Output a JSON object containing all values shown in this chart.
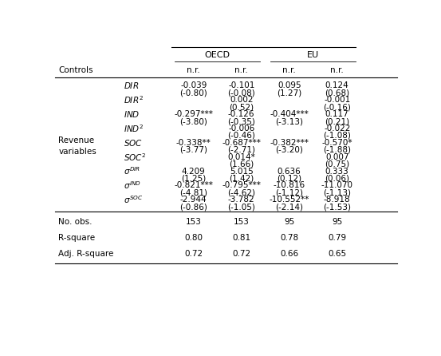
{
  "title_left": "OECD",
  "title_right": "EU",
  "controls_label": "Controls",
  "col_headers": [
    "n.r.",
    "n.r.",
    "n.r.",
    "n.r."
  ],
  "revenue_label": "Revenue\nvariables",
  "rows": [
    {
      "var": "DIR",
      "sup": "",
      "vals": [
        "-0.039",
        "-0.101",
        "0.095",
        "0.124"
      ],
      "tvals": [
        "(-0.80)",
        "(-0.08)",
        "(1.27)",
        "(0.68)"
      ]
    },
    {
      "var": "DIR",
      "sup": "2",
      "vals": [
        "",
        "0.002",
        "",
        "-0.001"
      ],
      "tvals": [
        "",
        "(0.52)",
        "",
        "(-0.16)"
      ]
    },
    {
      "var": "IND",
      "sup": "",
      "vals": [
        "-0.297***",
        "-0.126",
        "-0.404***",
        "0.117"
      ],
      "tvals": [
        "(-3.80)",
        "(-0.35)",
        "(-3.13)",
        "(0.21)"
      ]
    },
    {
      "var": "IND",
      "sup": "2",
      "vals": [
        "",
        "-0.006",
        "",
        "-0.022"
      ],
      "tvals": [
        "",
        "(-0.46)",
        "",
        "(-1.08)"
      ]
    },
    {
      "var": "SOC",
      "sup": "",
      "vals": [
        "-0.338**",
        "-0.687***",
        "-0.382***",
        "-0.570*"
      ],
      "tvals": [
        "(-3.77)",
        "(-2.71)",
        "(-3.20)",
        "(-1.88)"
      ]
    },
    {
      "var": "SOC",
      "sup": "2",
      "vals": [
        "",
        "0.014*",
        "",
        "0.007"
      ],
      "tvals": [
        "",
        "(1.66)",
        "",
        "(0.75)"
      ]
    },
    {
      "var": "sigma_DIR",
      "sup": "DIR",
      "vals": [
        "4.209",
        "5.015",
        "0.636",
        "0.333"
      ],
      "tvals": [
        "(1.25)",
        "(1.42)",
        "(0.12)",
        "(0.06)"
      ]
    },
    {
      "var": "sigma_IND",
      "sup": "IND",
      "vals": [
        "-0.821***",
        "-0.795***",
        "-10.816",
        "-11.070"
      ],
      "tvals": [
        "(-4.81)",
        "(-4.62)",
        "(-1.12)",
        "(-1.13)"
      ]
    },
    {
      "var": "sigma_SOC",
      "sup": "SOC",
      "vals": [
        "-2.944",
        "-3.782",
        "-10.552**",
        "-8.918"
      ],
      "tvals": [
        "(-0.86)",
        "(-1.05)",
        "(-2.14)",
        "(-1.53)"
      ]
    }
  ],
  "footer": [
    {
      "label": "No. obs.",
      "vals": [
        "153",
        "153",
        "95",
        "95"
      ]
    },
    {
      "label": "R-square",
      "vals": [
        "0.80",
        "0.81",
        "0.78",
        "0.79"
      ]
    },
    {
      "label": "Adj. R-square",
      "vals": [
        "0.72",
        "0.72",
        "0.66",
        "0.65"
      ]
    }
  ],
  "bg_color": "#ffffff",
  "text_color": "#000000",
  "font_size": 7.5
}
